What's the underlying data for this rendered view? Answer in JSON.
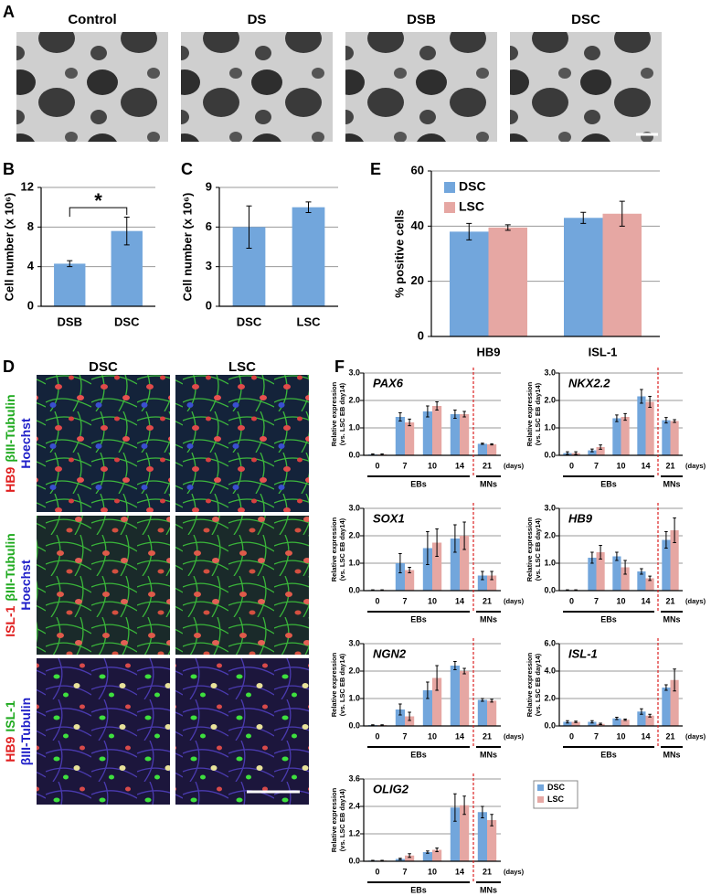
{
  "panel_a": {
    "label": "A",
    "images": [
      "Control",
      "DS",
      "DSB",
      "DSC"
    ]
  },
  "panel_d": {
    "label": "D",
    "columns": [
      "DSC",
      "LSC"
    ],
    "rows": [
      [
        [
          {
            "text": "HB9",
            "color": "#e02020"
          },
          {
            "text": "βIII-Tubulin",
            "color": "#1faa1f"
          }
        ],
        [
          {
            "text": "Hoechst",
            "color": "#2020c8"
          }
        ]
      ],
      [
        [
          {
            "text": "ISL-1",
            "color": "#e02020"
          },
          {
            "text": "βIII-Tubulin",
            "color": "#1faa1f"
          }
        ],
        [
          {
            "text": "Hoechst",
            "color": "#2020c8"
          }
        ]
      ],
      [
        [
          {
            "text": "HB9",
            "color": "#e02020"
          },
          {
            "text": "ISL-1",
            "color": "#1faa1f"
          }
        ],
        [
          {
            "text": "βIII-Tubulin",
            "color": "#2020c8"
          }
        ]
      ]
    ]
  },
  "panel_f": {
    "label": "F"
  },
  "chart_data": [
    {
      "type": "bar",
      "label": "B",
      "y_label": "Cell number (x 10⁶)",
      "categories": [
        "DSB",
        "DSC"
      ],
      "values": [
        4.3,
        7.6
      ],
      "errors": [
        0.3,
        1.4
      ],
      "color": "#72a6dc",
      "annotation": "*",
      "ylim": [
        0,
        12
      ],
      "yticks": [
        0,
        4,
        8,
        12
      ],
      "grid": true
    },
    {
      "type": "bar",
      "label": "C",
      "y_label": "Cell number (x 10⁶)",
      "categories": [
        "DSC",
        "LSC"
      ],
      "values": [
        6.0,
        7.5
      ],
      "errors": [
        1.6,
        0.4
      ],
      "color": "#72a6dc",
      "ylim": [
        0,
        9
      ],
      "yticks": [
        0,
        3,
        6,
        9
      ],
      "grid": true
    },
    {
      "type": "bar",
      "label": "E",
      "y_label": "% positive cells",
      "categories": [
        "HB9",
        "ISL-1"
      ],
      "series": [
        {
          "name": "DSC",
          "color": "#72a6dc",
          "values": [
            38,
            43
          ],
          "errors": [
            3,
            2
          ]
        },
        {
          "name": "LSC",
          "color": "#e6a7a3",
          "values": [
            39.5,
            44.5
          ],
          "errors": [
            1,
            4.5
          ]
        }
      ],
      "legend": "top-left",
      "ylim": [
        0,
        60
      ],
      "yticks": [
        0,
        20,
        40,
        60
      ],
      "grid": true
    },
    {
      "type": "bar",
      "title": "PAX6",
      "y_label": [
        "Relative expression",
        "(vs. LSC EB day14)"
      ],
      "categories": [
        "0",
        "7",
        "10",
        "14",
        "21"
      ],
      "x_unit": "(days)",
      "groups": [
        "EBs",
        "MNs"
      ],
      "series": [
        {
          "color": "#72a6dc",
          "values": [
            0.03,
            1.4,
            1.6,
            1.5,
            0.42
          ],
          "errors": [
            0.02,
            0.15,
            0.2,
            0.15,
            0.02
          ]
        },
        {
          "color": "#e6a7a3",
          "values": [
            0.03,
            1.2,
            1.8,
            1.5,
            0.4
          ],
          "errors": [
            0.02,
            0.12,
            0.15,
            0.1,
            0.02
          ]
        }
      ],
      "ylim": [
        0,
        3
      ],
      "yticks": [
        {
          "value": 0,
          "label": "0.0"
        },
        {
          "value": 1,
          "label": "1.0"
        },
        {
          "value": 2,
          "label": "2.0"
        },
        {
          "value": 3,
          "label": "3.0"
        }
      ],
      "grid": true
    },
    {
      "type": "bar",
      "title": "NKX2.2",
      "y_label": [
        "Relative expression",
        "(vs. LSC EB day14)"
      ],
      "categories": [
        "0",
        "7",
        "10",
        "14",
        "21"
      ],
      "x_unit": "(days)",
      "groups": [
        "EBs",
        "MNs"
      ],
      "series": [
        {
          "color": "#72a6dc",
          "values": [
            0.08,
            0.18,
            1.35,
            2.15,
            1.28
          ],
          "errors": [
            0.05,
            0.05,
            0.12,
            0.25,
            0.1
          ]
        },
        {
          "color": "#e6a7a3",
          "values": [
            0.08,
            0.3,
            1.4,
            1.95,
            1.25
          ],
          "errors": [
            0.05,
            0.08,
            0.12,
            0.2,
            0.05
          ]
        }
      ],
      "ylim": [
        0,
        3
      ],
      "yticks": [
        {
          "value": 0,
          "label": "0.0"
        },
        {
          "value": 1,
          "label": "1.0"
        },
        {
          "value": 2,
          "label": "2.0"
        },
        {
          "value": 3,
          "label": "3.0"
        }
      ],
      "grid": true
    },
    {
      "type": "bar",
      "title": "SOX1",
      "y_label": [
        "Relative expression",
        "(vs. LSC EB day14)"
      ],
      "categories": [
        "0",
        "7",
        "10",
        "14",
        "21"
      ],
      "x_unit": "(days)",
      "groups": [
        "EBs",
        "MNs"
      ],
      "series": [
        {
          "color": "#72a6dc",
          "values": [
            0.02,
            1.0,
            1.55,
            1.9,
            0.55
          ],
          "errors": [
            0.01,
            0.35,
            0.6,
            0.5,
            0.15
          ]
        },
        {
          "color": "#e6a7a3",
          "values": [
            0.02,
            0.75,
            1.75,
            2.0,
            0.55
          ],
          "errors": [
            0.01,
            0.1,
            0.5,
            0.5,
            0.15
          ]
        }
      ],
      "ylim": [
        0,
        3
      ],
      "yticks": [
        {
          "value": 0,
          "label": "0.0"
        },
        {
          "value": 1,
          "label": "1.0"
        },
        {
          "value": 2,
          "label": "2.0"
        },
        {
          "value": 3,
          "label": "3.0"
        }
      ],
      "grid": true
    },
    {
      "type": "bar",
      "title": "HB9",
      "y_label": [
        "Relative expression",
        "(vs. LSC EB day14)"
      ],
      "categories": [
        "0",
        "7",
        "10",
        "14",
        "21"
      ],
      "x_unit": "(days)",
      "groups": [
        "EBs",
        "MNs"
      ],
      "series": [
        {
          "color": "#72a6dc",
          "values": [
            0.02,
            1.2,
            1.25,
            0.7,
            1.85
          ],
          "errors": [
            0.01,
            0.2,
            0.15,
            0.1,
            0.3
          ]
        },
        {
          "color": "#e6a7a3",
          "values": [
            0.02,
            1.4,
            0.85,
            0.45,
            2.2
          ],
          "errors": [
            0.01,
            0.25,
            0.25,
            0.08,
            0.45
          ]
        }
      ],
      "ylim": [
        0,
        3
      ],
      "yticks": [
        {
          "value": 0,
          "label": "0.0"
        },
        {
          "value": 1,
          "label": "1.0"
        },
        {
          "value": 2,
          "label": "2.0"
        },
        {
          "value": 3,
          "label": "3.0"
        }
      ],
      "grid": true
    },
    {
      "type": "bar",
      "title": "NGN2",
      "y_label": [
        "Relative expression",
        "(vs. LSC EB day14)"
      ],
      "categories": [
        "0",
        "7",
        "10",
        "14",
        "21"
      ],
      "x_unit": "(days)",
      "groups": [
        "EBs",
        "MNs"
      ],
      "series": [
        {
          "color": "#72a6dc",
          "values": [
            0.03,
            0.6,
            1.3,
            2.2,
            0.95
          ],
          "errors": [
            0.01,
            0.2,
            0.3,
            0.15,
            0.05
          ]
        },
        {
          "color": "#e6a7a3",
          "values": [
            0.03,
            0.35,
            1.75,
            2.0,
            0.92
          ],
          "errors": [
            0.01,
            0.15,
            0.45,
            0.1,
            0.05
          ]
        }
      ],
      "ylim": [
        0,
        3
      ],
      "yticks": [
        {
          "value": 0,
          "label": "0.0"
        },
        {
          "value": 1,
          "label": "1.0"
        },
        {
          "value": 2,
          "label": "2.0"
        },
        {
          "value": 3,
          "label": "3.0"
        }
      ],
      "grid": true
    },
    {
      "type": "bar",
      "title": "ISL-1",
      "y_label": [
        "Relative expression",
        "(vs. LSC EB day14)"
      ],
      "categories": [
        "0",
        "7",
        "10",
        "14",
        "21"
      ],
      "x_unit": "(days)",
      "groups": [
        "EBs",
        "MNs"
      ],
      "series": [
        {
          "color": "#72a6dc",
          "values": [
            0.3,
            0.3,
            0.55,
            1.05,
            2.8
          ],
          "errors": [
            0.08,
            0.08,
            0.08,
            0.2,
            0.2
          ]
        },
        {
          "color": "#e6a7a3",
          "values": [
            0.3,
            0.15,
            0.45,
            0.75,
            3.35
          ],
          "errors": [
            0.05,
            0.05,
            0.05,
            0.1,
            0.8
          ]
        }
      ],
      "ylim": [
        0,
        6
      ],
      "yticks": [
        {
          "value": 0,
          "label": "0.0"
        },
        {
          "value": 2,
          "label": "2.0"
        },
        {
          "value": 4,
          "label": "4.0"
        },
        {
          "value": 6,
          "label": "6.0"
        }
      ],
      "grid": true
    },
    {
      "type": "bar",
      "title": "OLIG2",
      "y_label": [
        "Relative expression",
        "(vs. LSC EB day14)"
      ],
      "categories": [
        "0",
        "7",
        "10",
        "14",
        "21"
      ],
      "x_unit": "(days)",
      "groups": [
        "EBs",
        "MNs"
      ],
      "series": [
        {
          "name": "DSC",
          "color": "#72a6dc",
          "values": [
            0.03,
            0.1,
            0.4,
            2.35,
            2.15
          ],
          "errors": [
            0.01,
            0.03,
            0.05,
            0.6,
            0.25
          ]
        },
        {
          "name": "LSC",
          "color": "#e6a7a3",
          "values": [
            0.03,
            0.25,
            0.5,
            2.45,
            1.8
          ],
          "errors": [
            0.01,
            0.08,
            0.08,
            0.4,
            0.25
          ]
        }
      ],
      "legend": "right",
      "ylim": [
        0,
        3.6
      ],
      "yticks": [
        {
          "value": 0,
          "label": "0.0"
        },
        {
          "value": 1.2,
          "label": "1.2"
        },
        {
          "value": 2.4,
          "label": "2.4"
        },
        {
          "value": 3.6,
          "label": "3.6"
        }
      ],
      "grid": true
    }
  ]
}
